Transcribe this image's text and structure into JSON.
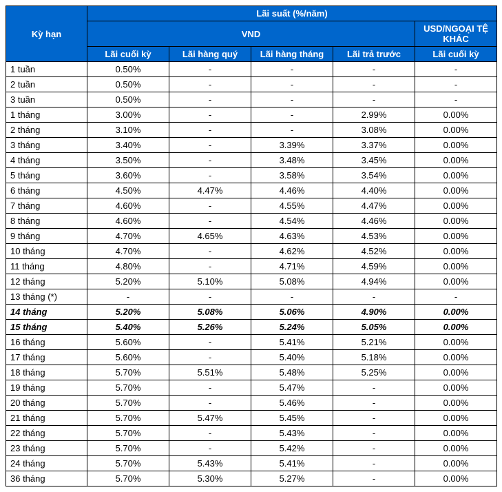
{
  "header": {
    "col_term": "Kỳ hạn",
    "top": "Lãi suất (%/năm)",
    "vnd": "VND",
    "usd": "USD/NGOẠI TỆ KHÁC",
    "sub": [
      "Lãi cuối kỳ",
      "Lãi hàng quý",
      "Lãi hàng tháng",
      "Lãi trả trước",
      "Lãi cuối kỳ"
    ]
  },
  "colors": {
    "header_bg": "#0066cc",
    "header_text": "#ffffff",
    "border": "#000000",
    "body_bg": "#ffffff",
    "body_text": "#000000"
  },
  "rows": [
    {
      "term": "1 tuần",
      "v": [
        "0.50%",
        "-",
        "-",
        "-",
        "-"
      ],
      "bold": false
    },
    {
      "term": "2 tuần",
      "v": [
        "0.50%",
        "-",
        "-",
        "-",
        "-"
      ],
      "bold": false
    },
    {
      "term": "3 tuần",
      "v": [
        "0.50%",
        "-",
        "-",
        "-",
        "-"
      ],
      "bold": false
    },
    {
      "term": "1 tháng",
      "v": [
        "3.00%",
        "-",
        "-",
        "2.99%",
        "0.00%"
      ],
      "bold": false
    },
    {
      "term": "2 tháng",
      "v": [
        "3.10%",
        "-",
        "-",
        "3.08%",
        "0.00%"
      ],
      "bold": false
    },
    {
      "term": "3 tháng",
      "v": [
        "3.40%",
        "-",
        "3.39%",
        "3.37%",
        "0.00%"
      ],
      "bold": false
    },
    {
      "term": "4 tháng",
      "v": [
        "3.50%",
        "-",
        "3.48%",
        "3.45%",
        "0.00%"
      ],
      "bold": false
    },
    {
      "term": "5 tháng",
      "v": [
        "3.60%",
        "-",
        "3.58%",
        "3.54%",
        "0.00%"
      ],
      "bold": false
    },
    {
      "term": "6 tháng",
      "v": [
        "4.50%",
        "4.47%",
        "4.46%",
        "4.40%",
        "0.00%"
      ],
      "bold": false
    },
    {
      "term": "7 tháng",
      "v": [
        "4.60%",
        "-",
        "4.55%",
        "4.47%",
        "0.00%"
      ],
      "bold": false
    },
    {
      "term": "8 tháng",
      "v": [
        "4.60%",
        "-",
        "4.54%",
        "4.46%",
        "0.00%"
      ],
      "bold": false
    },
    {
      "term": "9 tháng",
      "v": [
        "4.70%",
        "4.65%",
        "4.63%",
        "4.53%",
        "0.00%"
      ],
      "bold": false
    },
    {
      "term": "10 tháng",
      "v": [
        "4.70%",
        "-",
        "4.62%",
        "4.52%",
        "0.00%"
      ],
      "bold": false
    },
    {
      "term": "11 tháng",
      "v": [
        "4.80%",
        "-",
        "4.71%",
        "4.59%",
        "0.00%"
      ],
      "bold": false
    },
    {
      "term": "12 tháng",
      "v": [
        "5.20%",
        "5.10%",
        "5.08%",
        "4.94%",
        "0.00%"
      ],
      "bold": false
    },
    {
      "term": "13 tháng (*)",
      "v": [
        "-",
        "-",
        "-",
        "-",
        "-"
      ],
      "bold": false
    },
    {
      "term": "14 tháng",
      "v": [
        "5.20%",
        "5.08%",
        "5.06%",
        "4.90%",
        "0.00%"
      ],
      "bold": true
    },
    {
      "term": "15 tháng",
      "v": [
        "5.40%",
        "5.26%",
        "5.24%",
        "5.05%",
        "0.00%"
      ],
      "bold": true
    },
    {
      "term": "16 tháng",
      "v": [
        "5.60%",
        "-",
        "5.41%",
        "5.21%",
        "0.00%"
      ],
      "bold": false
    },
    {
      "term": "17 tháng",
      "v": [
        "5.60%",
        "-",
        "5.40%",
        "5.18%",
        "0.00%"
      ],
      "bold": false
    },
    {
      "term": "18 tháng",
      "v": [
        "5.70%",
        "5.51%",
        "5.48%",
        "5.25%",
        "0.00%"
      ],
      "bold": false
    },
    {
      "term": "19 tháng",
      "v": [
        "5.70%",
        "-",
        "5.47%",
        "-",
        "0.00%"
      ],
      "bold": false
    },
    {
      "term": "20 tháng",
      "v": [
        "5.70%",
        "-",
        "5.46%",
        "-",
        "0.00%"
      ],
      "bold": false
    },
    {
      "term": "21 tháng",
      "v": [
        "5.70%",
        "5.47%",
        "5.45%",
        "-",
        "0.00%"
      ],
      "bold": false
    },
    {
      "term": "22 tháng",
      "v": [
        "5.70%",
        "-",
        "5.43%",
        "-",
        "0.00%"
      ],
      "bold": false
    },
    {
      "term": "23 tháng",
      "v": [
        "5.70%",
        "-",
        "5.42%",
        "-",
        "0.00%"
      ],
      "bold": false
    },
    {
      "term": "24 tháng",
      "v": [
        "5.70%",
        "5.43%",
        "5.41%",
        "-",
        "0.00%"
      ],
      "bold": false
    },
    {
      "term": "36 tháng",
      "v": [
        "5.70%",
        "5.30%",
        "5.27%",
        "-",
        "0.00%"
      ],
      "bold": false
    }
  ]
}
